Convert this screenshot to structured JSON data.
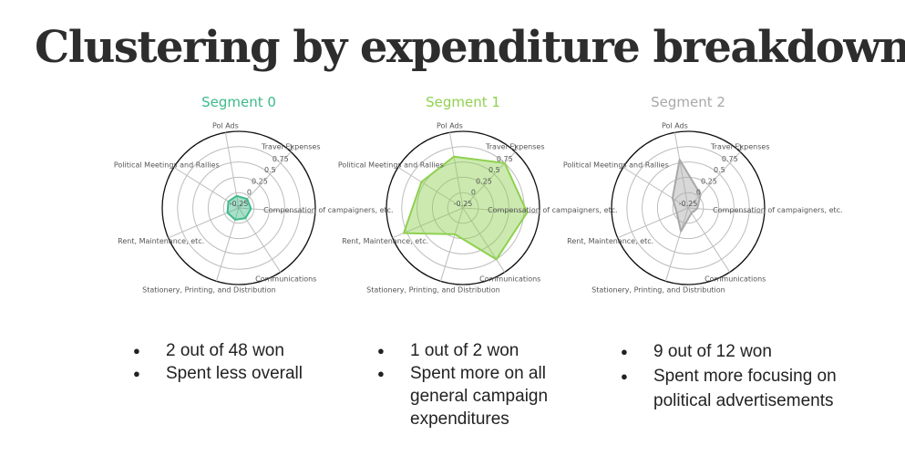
{
  "slide": {
    "title": "Clustering by expenditure breakdown"
  },
  "chart_data": [
    {
      "type": "radar",
      "title": "Segment 0",
      "color": "#3dba8a",
      "axes": [
        "Pol Ads",
        "Travel Expenses",
        "Compensation of campaigners, etc.",
        "Communications",
        "Stationery, Printing, and Distribution",
        "Rent, Maintenance, etc.",
        "Political Meetings and Rallies"
      ],
      "radial_ticks": [
        "-0.25",
        "0",
        "0.25",
        "0.5",
        "0.75",
        "1"
      ],
      "rlim": [
        -0.25,
        1
      ],
      "grid": true,
      "values": [
        -0.05,
        -0.05,
        -0.05,
        -0.05,
        -0.05,
        -0.05,
        -0.05
      ]
    },
    {
      "type": "radar",
      "title": "Segment 1",
      "color": "#8fd14f",
      "axes": [
        "Pol Ads",
        "Travel Expenses",
        "Compensation of campaigners, etc.",
        "Communications",
        "Stationery, Printing, and Distribution",
        "Rent, Maintenance, etc.",
        "Political Meetings and Rallies"
      ],
      "radial_ticks": [
        "-0.25",
        "0",
        "0.25",
        "0.5",
        "0.75",
        "1"
      ],
      "rlim": [
        -0.25,
        1
      ],
      "grid": true,
      "values": [
        0.6,
        0.75,
        0.8,
        0.75,
        0.2,
        0.8,
        0.55
      ]
    },
    {
      "type": "radar",
      "title": "Segment 2",
      "color": "#a8a8a8",
      "axes": [
        "Pol Ads",
        "Travel Expenses",
        "Compensation of campaigners, etc.",
        "Communications",
        "Stationery, Printing, and Distribution",
        "Rent, Maintenance, etc.",
        "Political Meetings and Rallies"
      ],
      "radial_ticks": [
        "-0.25",
        "0",
        "0.25",
        "0.5",
        "0.75",
        "1"
      ],
      "rlim": [
        -0.25,
        1
      ],
      "grid": true,
      "values": [
        0.55,
        0.05,
        -0.1,
        -0.15,
        0.15,
        -0.05,
        0.05
      ]
    }
  ],
  "bullets": [
    [
      "2 out of 48 won",
      "Spent less overall"
    ],
    [
      "1 out of 2 won",
      "Spent more on all general campaign expenditures"
    ],
    [
      "9 out of 12 won",
      "Spent more focusing on political advertisements"
    ]
  ]
}
